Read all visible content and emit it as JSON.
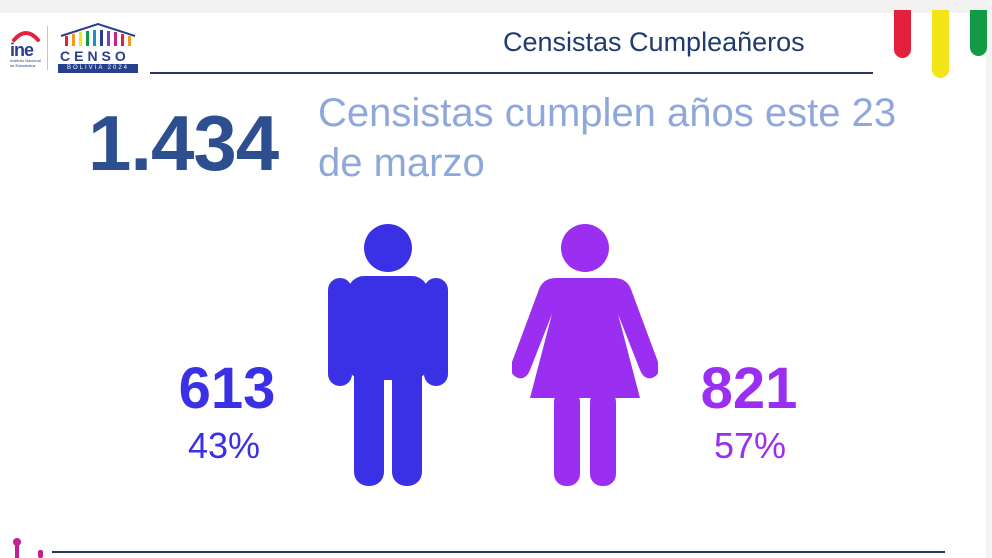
{
  "logos": {
    "ine_text": "ine",
    "ine_subtitle": "Instituto Nacional de Estadística",
    "censo_word": "CENSO",
    "censo_subtitle": "BOLIVIA 2024"
  },
  "header": {
    "title": "Censistas Cumpleañeros"
  },
  "headline": {
    "total": "1.434",
    "text": "Censistas cumplen años este 23 de marzo"
  },
  "stats": {
    "male": {
      "count": "613",
      "percent": "43%",
      "color": "#3a30e6"
    },
    "female": {
      "count": "821",
      "percent": "57%",
      "color": "#9a2ef1"
    }
  },
  "flag": {
    "colors": [
      "#e4203c",
      "#f3e51a",
      "#129a45"
    ]
  },
  "icons": [
    "male-figure-icon",
    "female-figure-icon"
  ]
}
